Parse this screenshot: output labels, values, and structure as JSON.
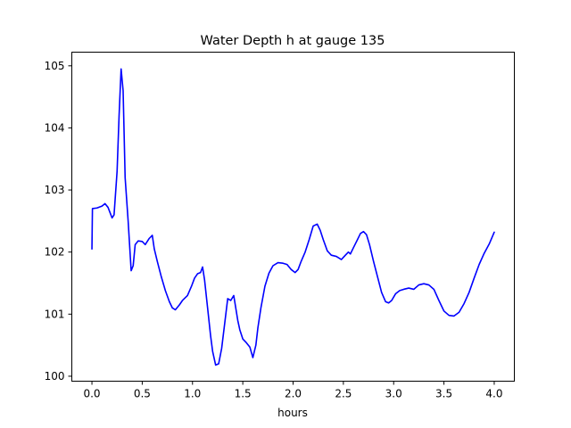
{
  "chart_data": {
    "type": "line",
    "title": "Water Depth h at gauge 135",
    "xlabel": "hours",
    "ylabel": "",
    "xlim": [
      -0.2,
      4.2
    ],
    "ylim": [
      99.92,
      105.22
    ],
    "xticks": [
      0.0,
      0.5,
      1.0,
      1.5,
      2.0,
      2.5,
      3.0,
      3.5,
      4.0
    ],
    "xtick_labels": [
      "0.0",
      "0.5",
      "1.0",
      "1.5",
      "2.0",
      "2.5",
      "3.0",
      "3.5",
      "4.0"
    ],
    "yticks": [
      100,
      101,
      102,
      103,
      104,
      105
    ],
    "ytick_labels": [
      "100",
      "101",
      "102",
      "103",
      "104",
      "105"
    ],
    "grid": false,
    "series": [
      {
        "color": "#0000ff",
        "x": [
          0.0,
          0.005,
          0.05,
          0.1,
          0.13,
          0.16,
          0.2,
          0.22,
          0.25,
          0.27,
          0.29,
          0.31,
          0.33,
          0.36,
          0.39,
          0.41,
          0.43,
          0.46,
          0.5,
          0.53,
          0.57,
          0.6,
          0.62,
          0.65,
          0.69,
          0.73,
          0.77,
          0.8,
          0.83,
          0.87,
          0.9,
          0.95,
          0.99,
          1.02,
          1.05,
          1.08,
          1.1,
          1.12,
          1.15,
          1.18,
          1.2,
          1.23,
          1.26,
          1.29,
          1.32,
          1.35,
          1.38,
          1.41,
          1.43,
          1.45,
          1.47,
          1.5,
          1.53,
          1.57,
          1.6,
          1.63,
          1.65,
          1.68,
          1.72,
          1.76,
          1.8,
          1.85,
          1.9,
          1.94,
          1.98,
          2.02,
          2.05,
          2.08,
          2.12,
          2.16,
          2.2,
          2.24,
          2.27,
          2.3,
          2.34,
          2.38,
          2.43,
          2.48,
          2.52,
          2.55,
          2.57,
          2.6,
          2.64,
          2.67,
          2.7,
          2.73,
          2.76,
          2.8,
          2.84,
          2.88,
          2.92,
          2.95,
          2.98,
          3.02,
          3.06,
          3.1,
          3.15,
          3.2,
          3.25,
          3.3,
          3.35,
          3.4,
          3.45,
          3.5,
          3.55,
          3.6,
          3.65,
          3.7,
          3.75,
          3.8,
          3.85,
          3.9,
          3.95,
          4.0
        ],
        "y": [
          102.05,
          102.7,
          102.71,
          102.74,
          102.78,
          102.72,
          102.55,
          102.6,
          103.3,
          104.2,
          104.95,
          104.6,
          103.2,
          102.5,
          101.7,
          101.78,
          102.12,
          102.18,
          102.17,
          102.12,
          102.22,
          102.27,
          102.05,
          101.85,
          101.6,
          101.38,
          101.2,
          101.1,
          101.07,
          101.15,
          101.22,
          101.3,
          101.45,
          101.58,
          101.65,
          101.67,
          101.76,
          101.55,
          101.1,
          100.65,
          100.4,
          100.18,
          100.2,
          100.45,
          100.85,
          101.25,
          101.22,
          101.3,
          101.1,
          100.9,
          100.75,
          100.6,
          100.55,
          100.47,
          100.3,
          100.5,
          100.78,
          101.1,
          101.45,
          101.66,
          101.78,
          101.83,
          101.82,
          101.8,
          101.72,
          101.67,
          101.72,
          101.85,
          102.0,
          102.2,
          102.42,
          102.45,
          102.35,
          102.2,
          102.02,
          101.95,
          101.93,
          101.88,
          101.95,
          102.0,
          101.97,
          102.07,
          102.2,
          102.3,
          102.33,
          102.28,
          102.12,
          101.85,
          101.6,
          101.35,
          101.2,
          101.18,
          101.22,
          101.33,
          101.38,
          101.4,
          101.42,
          101.4,
          101.47,
          101.49,
          101.47,
          101.4,
          101.22,
          101.05,
          100.98,
          100.97,
          101.03,
          101.17,
          101.35,
          101.58,
          101.8,
          101.98,
          102.13,
          102.32
        ]
      }
    ]
  }
}
